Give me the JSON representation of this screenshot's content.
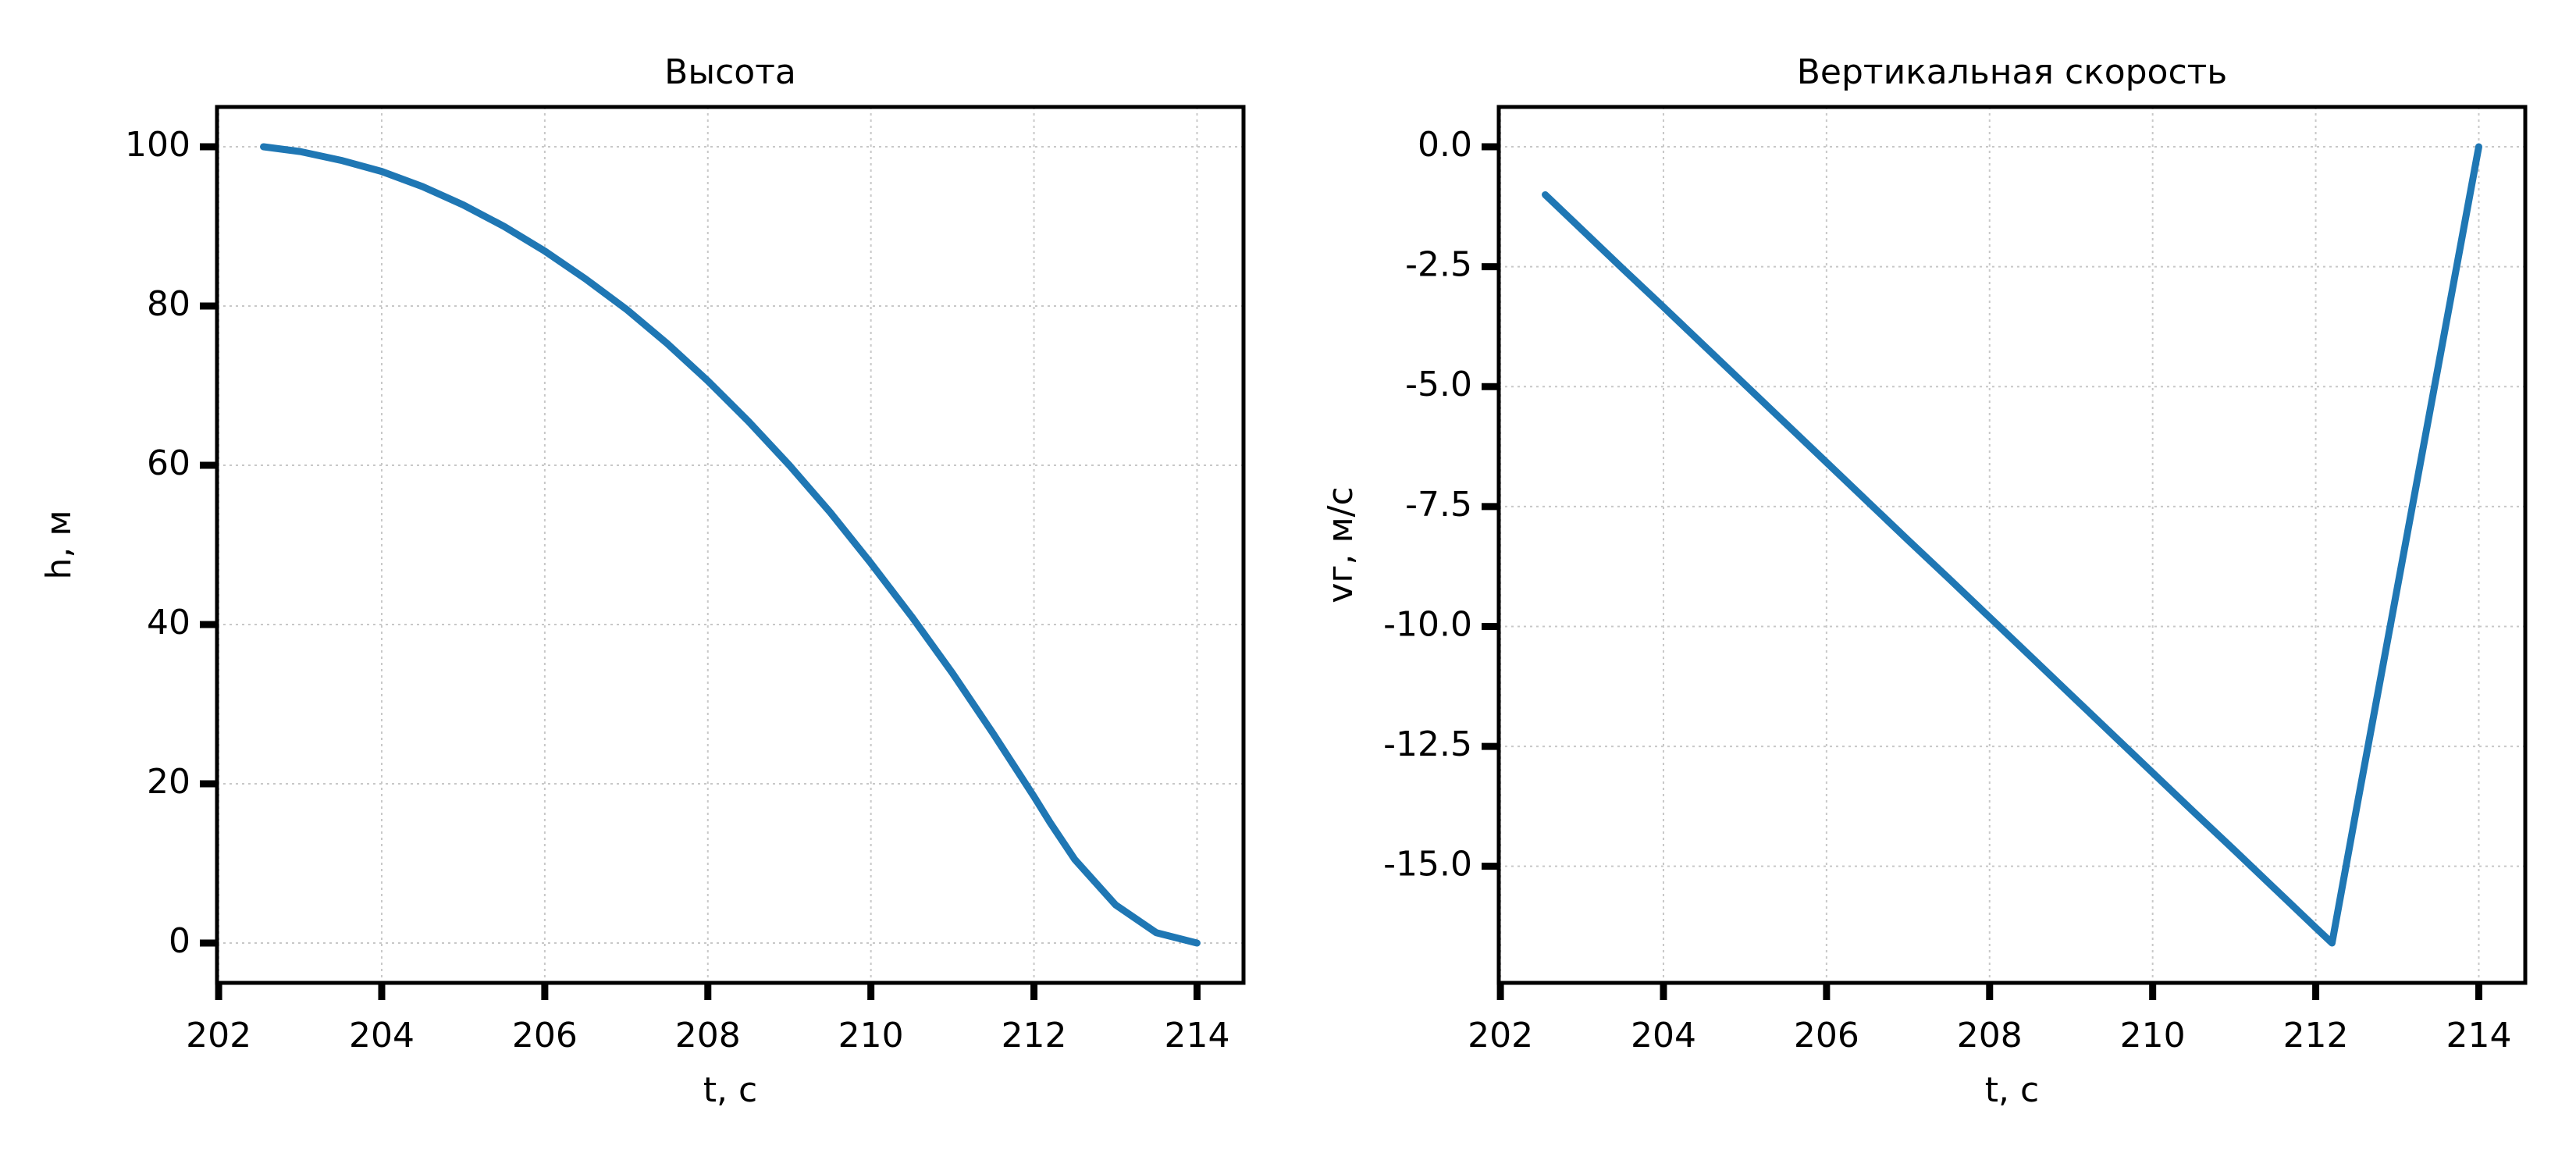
{
  "chart_data": [
    {
      "type": "line",
      "title": "Высота",
      "xlabel": "t, с",
      "ylabel": "h, м",
      "x": [
        202.55,
        203,
        203.5,
        204,
        204.5,
        205,
        205.5,
        206,
        206.5,
        207,
        207.5,
        208,
        208.5,
        209,
        209.5,
        210,
        210.5,
        211,
        211.5,
        212,
        212.2,
        212.5,
        213,
        213.5,
        214
      ],
      "series": [
        {
          "color": "#1f77b4",
          "values": [
            100,
            99.4,
            98.3,
            96.9,
            95.0,
            92.7,
            90.0,
            86.9,
            83.4,
            79.6,
            75.3,
            70.6,
            65.5,
            60.0,
            54.1,
            47.7,
            41.0,
            33.9,
            26.3,
            18.4,
            15.1,
            10.5,
            4.8,
            1.3,
            0
          ]
        }
      ],
      "xlim": [
        201.98,
        214.57
      ],
      "xticks": [
        202,
        204,
        206,
        208,
        210,
        212,
        214
      ],
      "ylim": [
        -5,
        105
      ],
      "yticks": [
        0,
        20,
        40,
        60,
        80,
        100
      ],
      "grid": true
    },
    {
      "type": "line",
      "title": "Вертикальная скорость",
      "xlabel": "t, с",
      "ylabel": "vг, м/с",
      "x": [
        202.55,
        203,
        203.5,
        204,
        204.5,
        205,
        205.5,
        206,
        206.5,
        207,
        207.5,
        208,
        208.5,
        209,
        209.5,
        210,
        210.5,
        211,
        211.5,
        212,
        212.2,
        212.5,
        213,
        213.5,
        214
      ],
      "series": [
        {
          "color": "#1f77b4",
          "values": [
            -1,
            -1.73,
            -2.54,
            -3.34,
            -4.15,
            -4.96,
            -5.77,
            -6.58,
            -7.39,
            -8.2,
            -9.0,
            -9.81,
            -10.62,
            -11.43,
            -12.24,
            -13.05,
            -13.86,
            -14.66,
            -15.47,
            -16.28,
            -16.6,
            -13.8,
            -9.2,
            -4.6,
            0
          ]
        }
      ],
      "xlim": [
        201.98,
        214.57
      ],
      "xticks": [
        202,
        204,
        206,
        208,
        210,
        212,
        214
      ],
      "ylim": [
        -17.43,
        0.83
      ],
      "yticks": [
        {
          "value": 0,
          "label": "0.0"
        },
        -2.5,
        {
          "value": -5,
          "label": "-5.0"
        },
        -7.5,
        {
          "value": -10,
          "label": "-10.0"
        },
        -12.5,
        {
          "value": -15,
          "label": "-15.0"
        }
      ],
      "grid": true
    }
  ]
}
